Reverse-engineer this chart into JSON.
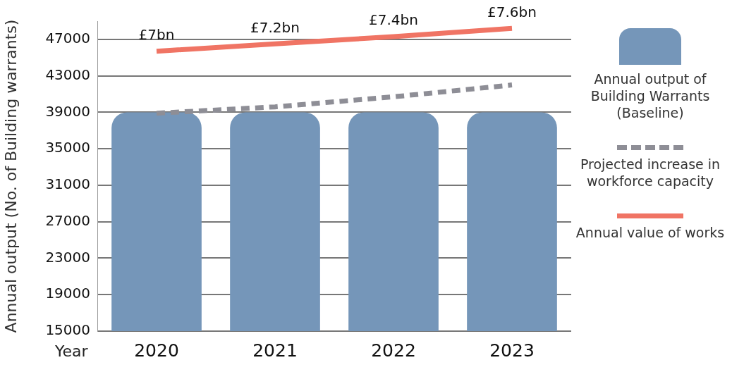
{
  "chart_data": {
    "type": "bar",
    "xlabel": "Year",
    "ylabel": "Annual output (No. of Building warrants)",
    "categories": [
      "2020",
      "2021",
      "2022",
      "2023"
    ],
    "series": [
      {
        "name": "Annual output of Building Warrants (Baseline)",
        "color": "#7596b9",
        "values": [
          39000,
          39000,
          39000,
          39000
        ]
      },
      {
        "name": "Projected increase in workforce capacity",
        "type": "line",
        "color": "#8e8e96",
        "line_style": "dashed",
        "values": [
          38900,
          39600,
          40700,
          42000
        ]
      },
      {
        "name": "Annual value of works",
        "type": "line",
        "color": "#f07464",
        "line_style": "solid",
        "values": [
          45700,
          46500,
          47300,
          48200
        ]
      }
    ],
    "annotations": [
      {
        "text": "£7bn",
        "x": "2020",
        "y": 45700
      },
      {
        "text": "£7.2bn",
        "x": "2021",
        "y": 46500
      },
      {
        "text": "£7.4bn",
        "x": "2022",
        "y": 47300
      },
      {
        "text": "£7.6bn",
        "x": "2023",
        "y": 48200
      }
    ],
    "ylim": [
      15000,
      49000
    ],
    "yticks": [
      15000,
      19000,
      23000,
      27000,
      31000,
      35000,
      39000,
      43000,
      47000
    ],
    "grid": "y",
    "legend": "right",
    "marker": "none"
  }
}
